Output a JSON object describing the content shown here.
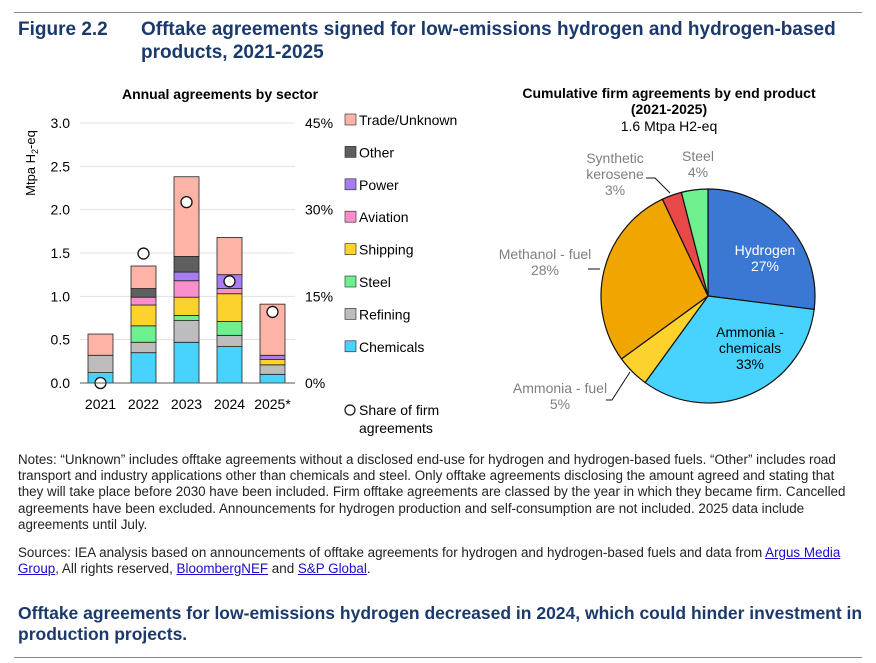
{
  "figure": {
    "number": "Figure 2.2",
    "title": "Offtake agreements signed for low-emissions hydrogen and hydrogen-based products, 2021-2025"
  },
  "chart_data": [
    {
      "type": "bar",
      "stacked": true,
      "title": "Annual agreements by sector",
      "ylabel": "Mtpa H2-eq",
      "ylim": [
        0,
        3.0
      ],
      "yticks": [
        "0.0",
        "0.5",
        "1.0",
        "1.5",
        "2.0",
        "2.5",
        "3.0"
      ],
      "y2lim": [
        0,
        45
      ],
      "y2ticks": [
        "0%",
        "15%",
        "30%",
        "45%"
      ],
      "grid": true,
      "legend_placement": "right",
      "categories": [
        "2021",
        "2022",
        "2023",
        "2024",
        "2025*"
      ],
      "series": [
        {
          "name": "Chemicals",
          "color": "#47d3fd",
          "values": [
            0.12,
            0.35,
            0.47,
            0.42,
            0.1
          ]
        },
        {
          "name": "Refining",
          "color": "#bdbdbd",
          "values": [
            0.2,
            0.12,
            0.25,
            0.13,
            0.11
          ]
        },
        {
          "name": "Steel",
          "color": "#6ef08e",
          "values": [
            0,
            0.19,
            0.06,
            0.16,
            0
          ]
        },
        {
          "name": "Shipping",
          "color": "#fdd22c",
          "values": [
            0,
            0.24,
            0.21,
            0.32,
            0.06
          ]
        },
        {
          "name": "Aviation",
          "color": "#fb8fcc",
          "values": [
            0,
            0.09,
            0.19,
            0.06,
            0
          ]
        },
        {
          "name": "Power",
          "color": "#a67ef0",
          "values": [
            0,
            0,
            0.1,
            0.16,
            0.05
          ]
        },
        {
          "name": "Other",
          "color": "#5f5f5f",
          "values": [
            0,
            0.1,
            0.18,
            0,
            0
          ]
        },
        {
          "name": "Trade/Unknown",
          "color": "#fdb3a6",
          "values": [
            0.245,
            0.26,
            0.92,
            0.43,
            0.59
          ]
        }
      ],
      "share_series": {
        "name": "Share of firm agreements",
        "unit": "%",
        "values": [
          0,
          22.4,
          31.3,
          17.6,
          12.3
        ]
      }
    },
    {
      "type": "pie",
      "title": "Cumulative firm agreements by end product",
      "title_line2": "(2021-2025)",
      "subtitle": "1.6 Mtpa H2-eq",
      "slices": [
        {
          "label": "Hydrogen",
          "value": 27,
          "pct": "27%",
          "color": "#3b78d4"
        },
        {
          "label": "Ammonia - chemicals",
          "value": 33,
          "pct": "33%",
          "color": "#47d3fd"
        },
        {
          "label": "Ammonia - fuel",
          "value": 5,
          "pct": "5%",
          "color": "#fdd22c"
        },
        {
          "label": "Methanol - fuel",
          "value": 28,
          "pct": "28%",
          "color": "#f0a500"
        },
        {
          "label": "Synthetic kerosene",
          "value": 3,
          "pct": "3%",
          "color": "#e84848"
        },
        {
          "label": "Steel",
          "value": 4,
          "pct": "4%",
          "color": "#6ef08e"
        }
      ]
    }
  ],
  "notes": "Notes: “Unknown” includes offtake agreements without a disclosed end-use for hydrogen and hydrogen-based fuels. “Other” includes road transport and industry applications other than chemicals and steel. Only offtake agreements disclosing the amount agreed and stating that they will take place before 2030 have been included. Firm offtake agreements are classed by the year in which they became firm. Cancelled agreements have been excluded. Announcements for hydrogen production and self-consumption are not included. 2025 data include agreements until July.",
  "sources": {
    "prefix": "Sources: IEA analysis based on announcements of offtake agreements for hydrogen and hydrogen-based fuels and data from ",
    "link1": "Argus Media Group",
    "mid1": ", All rights reserved, ",
    "link2": "BloombergNEF",
    "mid2": " and ",
    "link3": "S&P Global",
    "suffix": "."
  },
  "takeaway": "Offtake agreements for low-emissions hydrogen decreased in 2024, which could hinder investment in production projects."
}
